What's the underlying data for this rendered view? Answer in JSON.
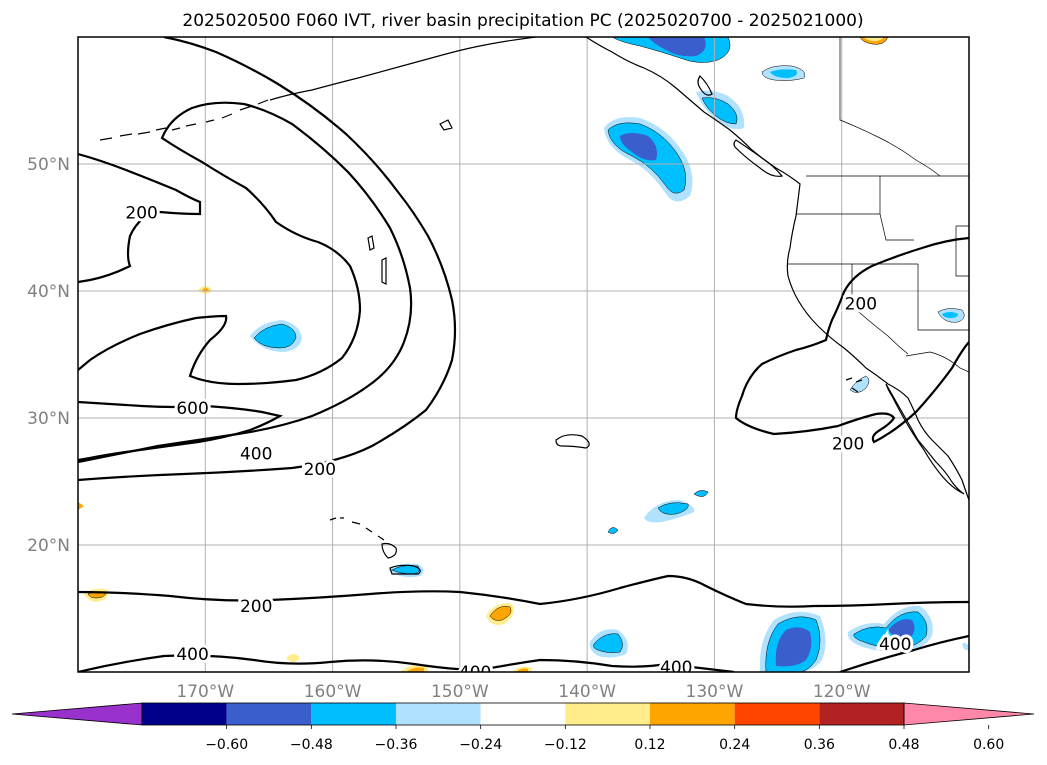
{
  "title": "2025020500 F060 IVT, river basin precipitation PC (2025020700 - 2025021000)",
  "map": {
    "extent": {
      "lon_min": -180,
      "lon_max": -110,
      "lat_min": 10,
      "lat_max": 60
    },
    "lat_labels": [
      {
        "lat": 50,
        "text": "50°N"
      },
      {
        "lat": 40,
        "text": "40°N"
      },
      {
        "lat": 30,
        "text": "30°N"
      },
      {
        "lat": 20,
        "text": "20°N"
      }
    ],
    "lon_labels": [
      {
        "lon": -170,
        "text": "170°W"
      },
      {
        "lon": -160,
        "text": "160°W"
      },
      {
        "lon": -150,
        "text": "150°W"
      },
      {
        "lon": -140,
        "text": "140°W"
      },
      {
        "lon": -130,
        "text": "130°W"
      },
      {
        "lon": -120,
        "text": "120°W"
      }
    ],
    "grid_lons": [
      -170,
      -160,
      -150,
      -140,
      -130,
      -120
    ],
    "grid_lats": [
      50,
      40,
      30,
      20
    ],
    "contour_labels": [
      {
        "text": "200",
        "lon": -175,
        "lat": 46.2
      },
      {
        "text": "600",
        "lon": -171,
        "lat": 30.8
      },
      {
        "text": "400",
        "lon": -166,
        "lat": 27.2
      },
      {
        "text": "200",
        "lon": -161,
        "lat": 26.0
      },
      {
        "text": "200",
        "lon": -118.5,
        "lat": 39.0
      },
      {
        "text": "200",
        "lon": -119.5,
        "lat": 28.0
      },
      {
        "text": "200",
        "lon": -166,
        "lat": 15.2
      },
      {
        "text": "400",
        "lon": -171,
        "lat": 11.4
      },
      {
        "text": "400",
        "lon": -148.8,
        "lat": 10.0
      },
      {
        "text": "400",
        "lon": -133,
        "lat": 10.4
      },
      {
        "text": "400",
        "lon": -115.8,
        "lat": 12.2
      }
    ]
  },
  "colorbar": {
    "colors": [
      "#9932cc",
      "#00008b",
      "#3a5fcd",
      "#00bfff",
      "#b0e2ff",
      "#ffffff",
      "#ffec8b",
      "#ffa500",
      "#ff4500",
      "#b22222",
      "#ff88aa"
    ],
    "tick_labels": [
      "−0.60",
      "−0.48",
      "−0.36",
      "−0.24",
      "−0.12",
      "0.12",
      "0.24",
      "0.36",
      "0.48",
      "0.60"
    ]
  }
}
